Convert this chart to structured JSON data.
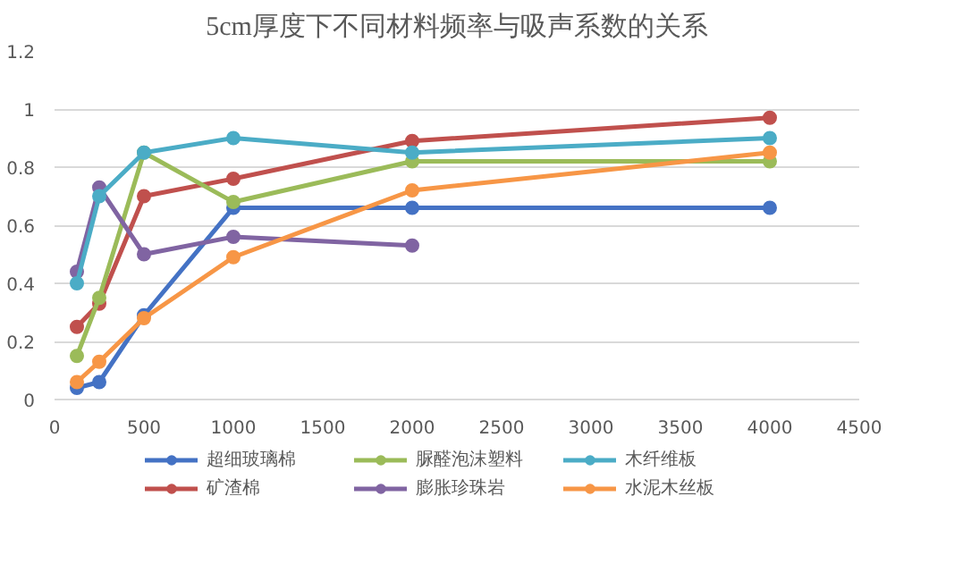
{
  "chart_data": {
    "type": "line",
    "title": "5cm厚度下不同材料频率与吸声系数的关系",
    "x": [
      125,
      250,
      500,
      1000,
      2000,
      4000
    ],
    "series": [
      {
        "name": "超细玻璃棉",
        "color": "#4472c4",
        "values": [
          0.04,
          0.06,
          0.29,
          0.66,
          0.66,
          0.66
        ]
      },
      {
        "name": "矿渣棉",
        "color": "#c0504d",
        "values": [
          0.25,
          0.33,
          0.7,
          0.76,
          0.89,
          0.97
        ]
      },
      {
        "name": "脲醛泡沫塑料",
        "color": "#9bbb59",
        "values": [
          0.15,
          0.35,
          0.85,
          0.68,
          0.82,
          0.82
        ]
      },
      {
        "name": "膨胀珍珠岩",
        "color": "#8064a2",
        "values": [
          0.44,
          0.73,
          0.5,
          0.56,
          0.53,
          null
        ]
      },
      {
        "name": "木纤维板",
        "color": "#4bacc6",
        "values": [
          0.4,
          0.7,
          0.85,
          0.9,
          0.85,
          0.9
        ]
      },
      {
        "name": "水泥木丝板",
        "color": "#f79646",
        "values": [
          0.06,
          0.13,
          0.28,
          0.49,
          0.72,
          0.85
        ]
      }
    ],
    "xlim": [
      0,
      4500
    ],
    "xticks": [
      0,
      500,
      1000,
      1500,
      2000,
      2500,
      3000,
      3500,
      4000,
      4500
    ],
    "ylim": [
      0,
      1.2
    ],
    "yticks": [
      0,
      0.2,
      0.4,
      0.6,
      0.8,
      1,
      1.2
    ],
    "grid": "y",
    "legend": "bottom",
    "marker": "circle",
    "line_style": "solid"
  }
}
